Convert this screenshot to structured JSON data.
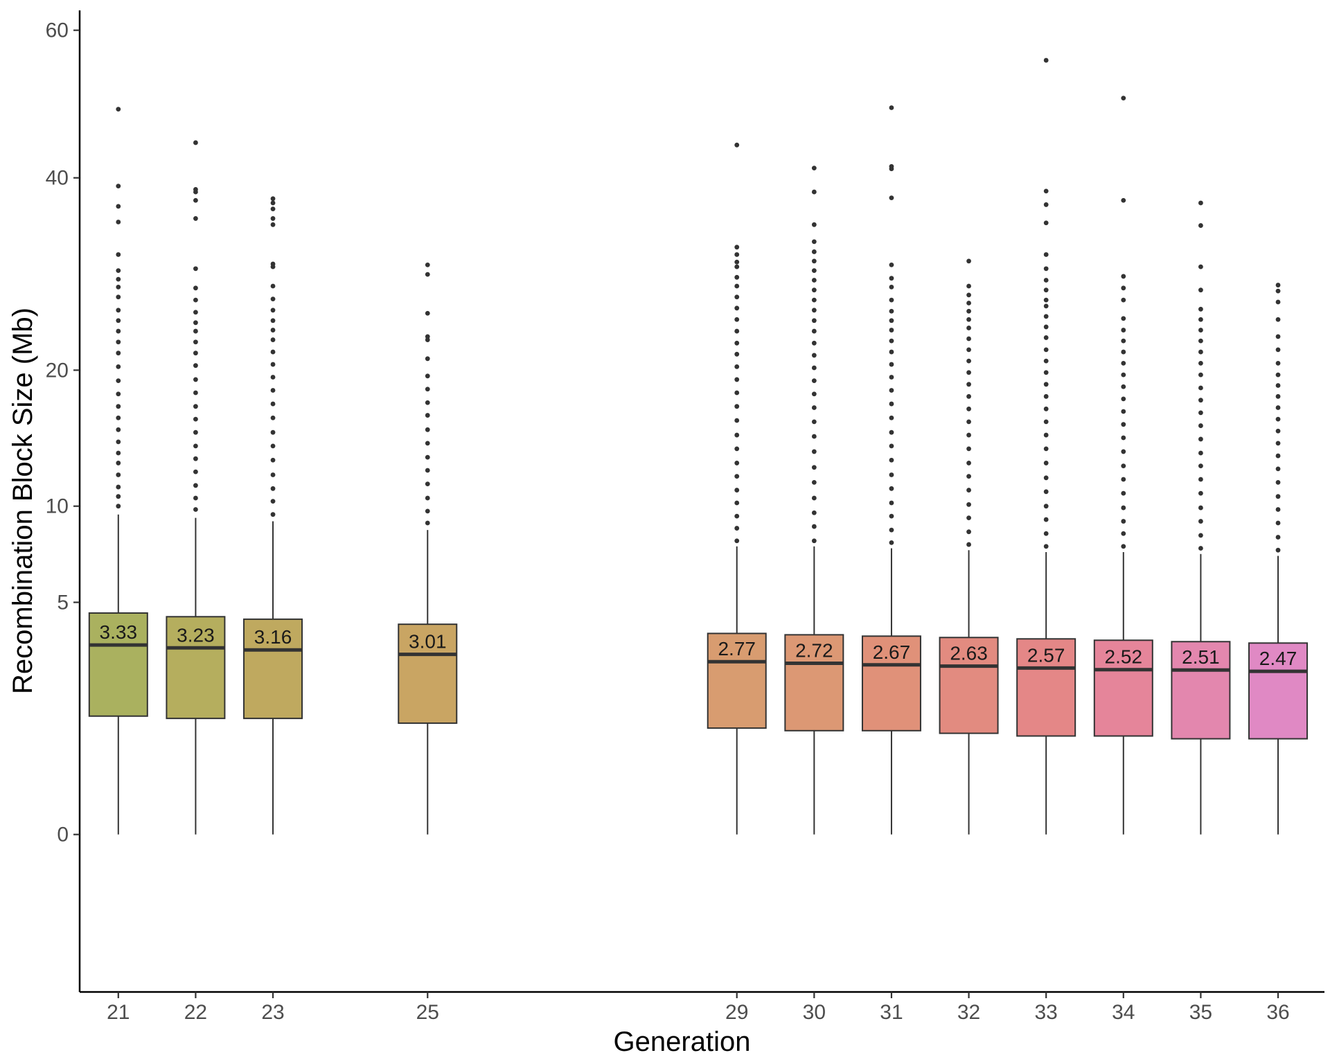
{
  "chart_data": {
    "type": "boxplot",
    "xlabel": "Generation",
    "ylabel": "Recombination Block Size (Mb)",
    "y_scale": "sqrt",
    "y_ticks": [
      0,
      5,
      10,
      20,
      40,
      60
    ],
    "ylim": [
      -2.3,
      63
    ],
    "x_ticks": [
      21,
      22,
      23,
      25,
      29,
      30,
      31,
      32,
      33,
      34,
      35,
      36
    ],
    "xlim": [
      20.5,
      36.6
    ],
    "grid": false,
    "legend": "none",
    "boxes": [
      {
        "generation": 21,
        "median": 3.33,
        "median_label": "3.33",
        "q1": 1.3,
        "q3": 4.55,
        "whisker_high": 9.5,
        "outliers": [
          10,
          10.6,
          11.2,
          12,
          12.8,
          13.5,
          14.3,
          15.2,
          16.1,
          17,
          18,
          19.1,
          20.3,
          21.5,
          22.5,
          23.5,
          24.5,
          25.5,
          26.8,
          27.8,
          28.6,
          29.5,
          31.2,
          34.8,
          36.6,
          39,
          48.8
        ]
      },
      {
        "generation": 22,
        "median": 3.23,
        "median_label": "3.23",
        "q1": 1.25,
        "q3": 4.4,
        "whisker_high": 9.3,
        "outliers": [
          9.8,
          10.5,
          11.3,
          12.2,
          13.1,
          14,
          15,
          16,
          17,
          18.1,
          19.2,
          20.4,
          21.5,
          22.5,
          23.5,
          24.3,
          25.3,
          26.5,
          27.7,
          29.7,
          35.2,
          37.3,
          38.3,
          38.6,
          44.4
        ]
      },
      {
        "generation": 23,
        "median": 3.16,
        "median_label": "3.16",
        "q1": 1.25,
        "q3": 4.3,
        "whisker_high": 9.1,
        "outliers": [
          9.5,
          10.3,
          11.1,
          12,
          13,
          14,
          15,
          16.1,
          17.2,
          18.3,
          19.4,
          20.5,
          21.6,
          22.7,
          23.6,
          24.5,
          25.5,
          26.6,
          27.9,
          29.9,
          30.2,
          34.5,
          35.2,
          36.3,
          37,
          37.5
        ]
      },
      {
        "generation": 25,
        "median": 3.01,
        "median_label": "3.01",
        "q1": 1.15,
        "q3": 4.1,
        "whisker_high": 8.6,
        "outliers": [
          9,
          9.7,
          10.5,
          11.4,
          12.3,
          13.2,
          14.2,
          15.2,
          16.3,
          17.3,
          18.4,
          19.5,
          21,
          22.7,
          23,
          25.2,
          29.1,
          30.1
        ]
      },
      {
        "generation": 29,
        "median": 2.77,
        "median_label": "2.77",
        "q1": 1.05,
        "q3": 3.75,
        "whisker_high": 7.7,
        "outliers": [
          8,
          8.7,
          9.4,
          10.2,
          11,
          11.9,
          12.8,
          13.8,
          14.8,
          15.9,
          17,
          18.1,
          19.2,
          20.3,
          21.4,
          22.4,
          23.5,
          24.6,
          25.7,
          26.8,
          27.9,
          28.8,
          29.9,
          30.4,
          31.2,
          32,
          44.1
        ]
      },
      {
        "generation": 30,
        "median": 2.72,
        "median_label": "2.72",
        "q1": 1.0,
        "q3": 3.7,
        "whisker_high": 7.7,
        "outliers": [
          8,
          8.8,
          9.6,
          10.5,
          11.5,
          12.5,
          13.6,
          14.7,
          15.8,
          16.9,
          18,
          19.1,
          20.2,
          21.3,
          22.4,
          23.5,
          24.5,
          25.5,
          26.5,
          27.5,
          28.5,
          29.5,
          30.5,
          31.5,
          32.6,
          34.5,
          38.3,
          41.2
        ]
      },
      {
        "generation": 31,
        "median": 2.67,
        "median_label": "2.67",
        "q1": 1.0,
        "q3": 3.65,
        "whisker_high": 7.6,
        "outliers": [
          7.9,
          8.6,
          9.4,
          10.2,
          11.1,
          12,
          13,
          14,
          15,
          16.1,
          17.2,
          18.3,
          19.4,
          20.5,
          21.6,
          22.6,
          23.6,
          24.5,
          25.4,
          26.5,
          27.8,
          28.7,
          30.1,
          37.6,
          41.1,
          41.4,
          49
        ]
      },
      {
        "generation": 32,
        "median": 2.63,
        "median_label": "2.63",
        "q1": 0.95,
        "q3": 3.6,
        "whisker_high": 7.5,
        "outliers": [
          7.8,
          8.5,
          9.3,
          10.1,
          11,
          11.9,
          12.8,
          13.8,
          14.8,
          15.8,
          16.8,
          17.8,
          18.8,
          19.8,
          20.8,
          21.8,
          22.8,
          23.8,
          24.6,
          25.4,
          26.2,
          27,
          27.9,
          30.5
        ]
      },
      {
        "generation": 33,
        "median": 2.57,
        "median_label": "2.57",
        "q1": 0.9,
        "q3": 3.55,
        "whisker_high": 7.4,
        "outliers": [
          7.7,
          8.4,
          9.2,
          10,
          10.9,
          11.8,
          12.8,
          13.8,
          14.8,
          15.8,
          16.8,
          17.8,
          18.8,
          19.8,
          20.8,
          21.8,
          22.9,
          23.9,
          24.9,
          25.9,
          26.5,
          27.5,
          28.5,
          29.7,
          31.2,
          34.7,
          36.8,
          38.4,
          55.6
        ]
      },
      {
        "generation": 34,
        "median": 2.52,
        "median_label": "2.52",
        "q1": 0.9,
        "q3": 3.5,
        "whisker_high": 7.4,
        "outliers": [
          7.7,
          8.4,
          9.1,
          9.9,
          10.8,
          11.7,
          12.6,
          13.6,
          14.6,
          15.6,
          16.6,
          17.6,
          18.6,
          19.6,
          20.6,
          21.6,
          22.6,
          23.6,
          24.7,
          26.5,
          27.7,
          28.9,
          37.3,
          50.3
        ]
      },
      {
        "generation": 35,
        "median": 2.51,
        "median_label": "2.51",
        "q1": 0.85,
        "q3": 3.45,
        "whisker_high": 7.3,
        "outliers": [
          7.6,
          8.3,
          9.1,
          9.9,
          10.8,
          11.7,
          12.6,
          13.5,
          14.5,
          15.5,
          16.5,
          17.5,
          18.5,
          19.6,
          20.6,
          21.6,
          22.6,
          23.6,
          24.6,
          25.6,
          27.5,
          29.9,
          34.4,
          37
        ]
      },
      {
        "generation": 36,
        "median": 2.47,
        "median_label": "2.47",
        "q1": 0.85,
        "q3": 3.4,
        "whisker_high": 7.2,
        "outliers": [
          7.5,
          8.2,
          9,
          9.8,
          10.6,
          11.5,
          12.4,
          13.3,
          14.2,
          15.1,
          16,
          16.9,
          17.8,
          18.7,
          19.6,
          20.6,
          21.8,
          23,
          24.6,
          26.3,
          27.4,
          28
        ]
      }
    ],
    "colors": {
      "21": "#aab15f",
      "22": "#b5ae5e",
      "23": "#bfa95f",
      "25": "#c9a563",
      "29": "#d89c70",
      "30": "#dc9874",
      "31": "#e09179",
      "32": "#e28b80",
      "33": "#e48787",
      "34": "#e5859a",
      "35": "#e387ae",
      "36": "#e089c4"
    }
  }
}
